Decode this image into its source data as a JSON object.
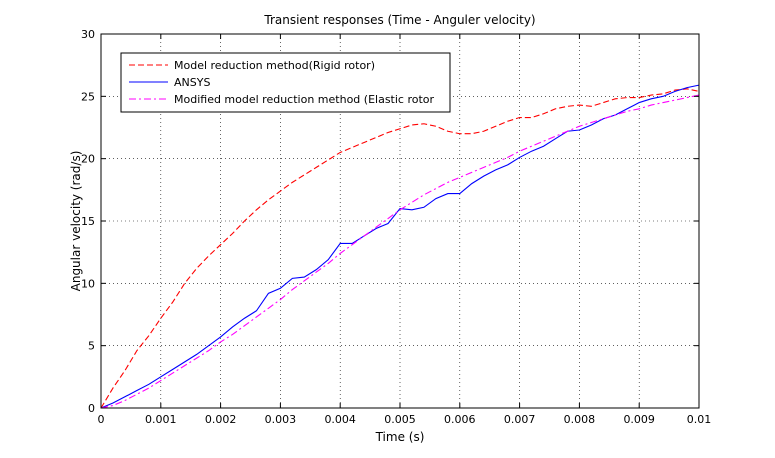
{
  "chart_data": {
    "type": "line",
    "title": "Transient responses (Time - Anguler velocity)",
    "xlabel": "Time (s)",
    "ylabel": "Angular velocity (rad/s)",
    "xlim": [
      0,
      0.01
    ],
    "ylim": [
      0,
      30
    ],
    "xticks": [
      "0",
      "0.001",
      "0.002",
      "0.003",
      "0.004",
      "0.005",
      "0.006",
      "0.007",
      "0.008",
      "0.009",
      "0.01"
    ],
    "yticks": [
      "0",
      "5",
      "10",
      "15",
      "20",
      "25",
      "30"
    ],
    "grid": true,
    "legend_position": "top-left",
    "series": [
      {
        "name": "Model reduction method(Rigid rotor)",
        "color": "#ff0000",
        "style": "dashed",
        "x": [
          0,
          0.0002,
          0.0004,
          0.0006,
          0.0008,
          0.001,
          0.0012,
          0.0014,
          0.0016,
          0.0018,
          0.002,
          0.0022,
          0.0024,
          0.0026,
          0.0028,
          0.003,
          0.0032,
          0.0034,
          0.0036,
          0.0038,
          0.004,
          0.0042,
          0.0044,
          0.0046,
          0.0048,
          0.005,
          0.0052,
          0.0054,
          0.0056,
          0.0058,
          0.006,
          0.0062,
          0.0064,
          0.0066,
          0.0068,
          0.007,
          0.0072,
          0.0074,
          0.0076,
          0.0078,
          0.008,
          0.0082,
          0.0084,
          0.0086,
          0.0088,
          0.009,
          0.0092,
          0.0094,
          0.0096,
          0.0098,
          0.01
        ],
        "values": [
          0,
          1.6,
          3.0,
          4.6,
          5.8,
          7.2,
          8.5,
          10.0,
          11.2,
          12.2,
          13.1,
          14.0,
          15.0,
          15.9,
          16.7,
          17.4,
          18.1,
          18.7,
          19.3,
          19.9,
          20.5,
          20.9,
          21.3,
          21.7,
          22.1,
          22.4,
          22.7,
          22.8,
          22.6,
          22.2,
          22.0,
          22.0,
          22.2,
          22.6,
          23.0,
          23.3,
          23.3,
          23.6,
          24.0,
          24.2,
          24.3,
          24.2,
          24.5,
          24.8,
          24.9,
          24.9,
          25.1,
          25.2,
          25.5,
          25.6,
          25.4
        ]
      },
      {
        "name": "ANSYS",
        "color": "#0000ff",
        "style": "solid",
        "x": [
          0,
          0.0002,
          0.0004,
          0.0006,
          0.0008,
          0.001,
          0.0012,
          0.0014,
          0.0016,
          0.0018,
          0.002,
          0.0022,
          0.0024,
          0.0026,
          0.0028,
          0.003,
          0.0032,
          0.0034,
          0.0036,
          0.0038,
          0.004,
          0.0042,
          0.0044,
          0.0046,
          0.0048,
          0.005,
          0.0052,
          0.0054,
          0.0056,
          0.0058,
          0.006,
          0.0062,
          0.0064,
          0.0066,
          0.0068,
          0.007,
          0.0072,
          0.0074,
          0.0076,
          0.0078,
          0.008,
          0.0082,
          0.0084,
          0.0086,
          0.0088,
          0.009,
          0.0092,
          0.0094,
          0.0096,
          0.0098,
          0.01
        ],
        "values": [
          0,
          0.4,
          0.9,
          1.4,
          1.9,
          2.5,
          3.1,
          3.7,
          4.3,
          5.0,
          5.7,
          6.5,
          7.2,
          7.8,
          9.2,
          9.6,
          10.4,
          10.5,
          11.1,
          11.9,
          13.2,
          13.2,
          13.8,
          14.4,
          14.8,
          16.0,
          15.9,
          16.1,
          16.8,
          17.2,
          17.2,
          18.0,
          18.6,
          19.1,
          19.5,
          20.1,
          20.6,
          21.0,
          21.6,
          22.2,
          22.3,
          22.7,
          23.2,
          23.5,
          24.0,
          24.5,
          24.8,
          25.0,
          25.4,
          25.7,
          25.9
        ]
      },
      {
        "name": "Modified model reduction method (Elastic rotor",
        "color": "#ff00ff",
        "style": "dashdot",
        "x": [
          0,
          0.0002,
          0.0004,
          0.0006,
          0.0008,
          0.001,
          0.0012,
          0.0014,
          0.0016,
          0.0018,
          0.002,
          0.0022,
          0.0024,
          0.0026,
          0.0028,
          0.003,
          0.0032,
          0.0034,
          0.0036,
          0.0038,
          0.004,
          0.0042,
          0.0044,
          0.0046,
          0.0048,
          0.005,
          0.0052,
          0.0054,
          0.0056,
          0.0058,
          0.006,
          0.0062,
          0.0064,
          0.0066,
          0.0068,
          0.007,
          0.0072,
          0.0074,
          0.0076,
          0.0078,
          0.008,
          0.0082,
          0.0084,
          0.0086,
          0.0088,
          0.009,
          0.0092,
          0.0094,
          0.0096,
          0.0098,
          0.01
        ],
        "values": [
          0,
          0.2,
          0.6,
          1.1,
          1.6,
          2.2,
          2.8,
          3.4,
          4.0,
          4.6,
          5.3,
          5.9,
          6.6,
          7.3,
          8.0,
          8.7,
          9.5,
          10.2,
          10.9,
          11.6,
          12.4,
          13.1,
          13.8,
          14.5,
          15.2,
          15.9,
          16.5,
          17.1,
          17.6,
          18.1,
          18.5,
          18.9,
          19.3,
          19.7,
          20.1,
          20.6,
          21.0,
          21.4,
          21.8,
          22.2,
          22.6,
          22.9,
          23.2,
          23.5,
          23.8,
          24.0,
          24.3,
          24.5,
          24.7,
          24.9,
          25.1
        ]
      }
    ]
  }
}
